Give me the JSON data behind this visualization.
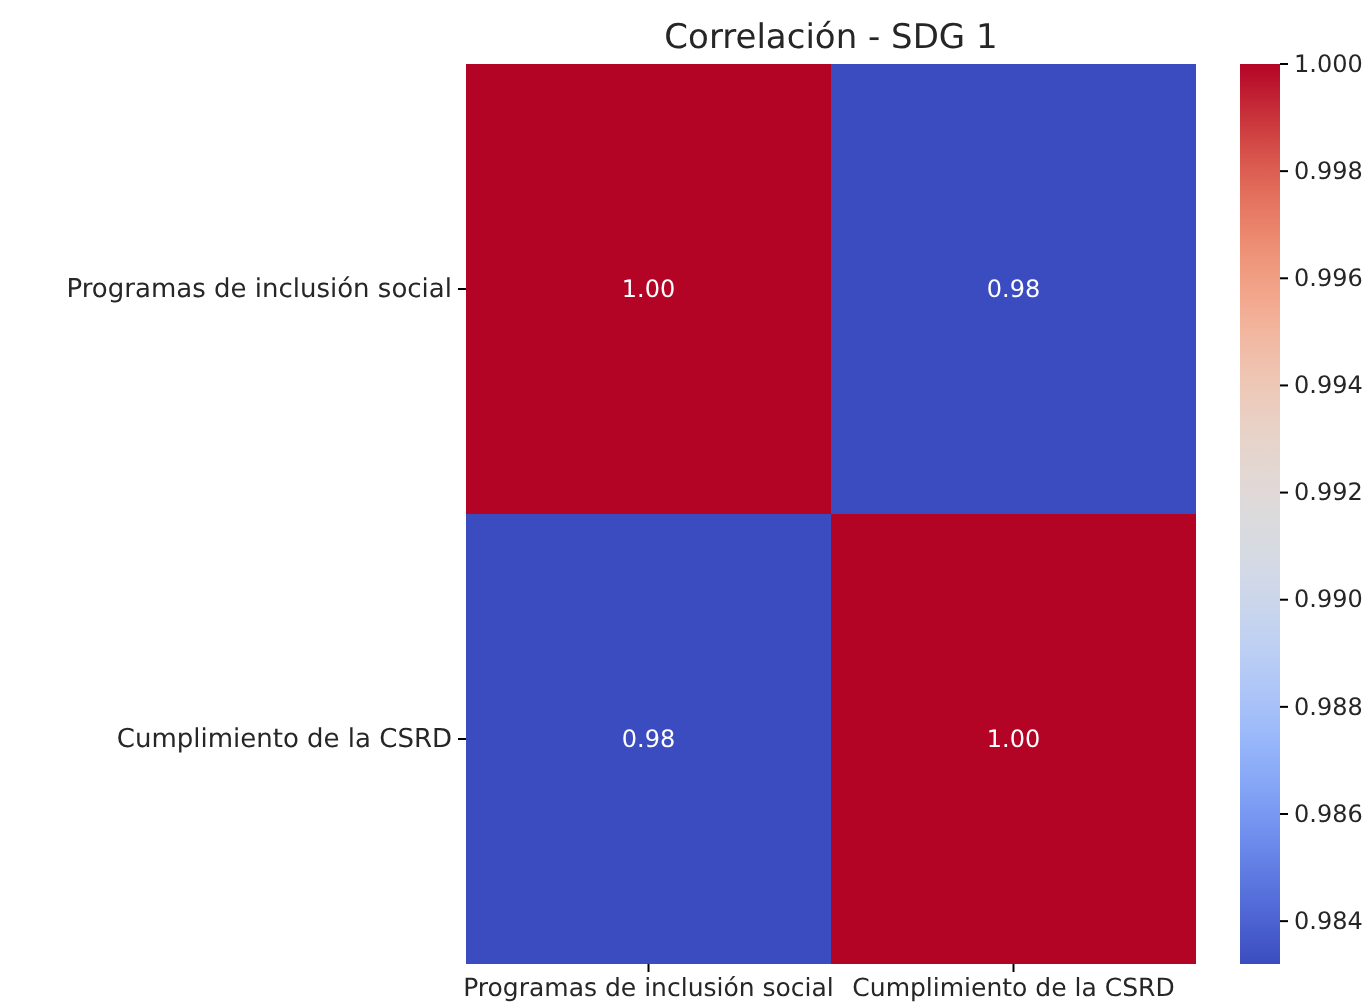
{
  "chart_data": {
    "type": "heatmap",
    "title": "Correlación - SDG 1",
    "categories": [
      "Programas de inclusión social",
      "Cumplimiento de la CSRD"
    ],
    "y_categories": [
      "Programas de inclusión social",
      "Cumplimiento de la CSRD"
    ],
    "cells": [
      [
        1.0,
        0.9832
      ],
      [
        0.9832,
        1.0
      ]
    ],
    "cell_labels": [
      [
        "1.00",
        "0.98"
      ],
      [
        "0.98",
        "1.00"
      ]
    ],
    "clim": [
      0.9832,
      1.0
    ],
    "cticks": [
      0.984,
      0.986,
      0.988,
      {
        "value": 0.99,
        "label": "0.990"
      },
      0.992,
      0.994,
      0.996,
      0.998,
      {
        "value": 1.0,
        "label": "1.000"
      }
    ]
  }
}
